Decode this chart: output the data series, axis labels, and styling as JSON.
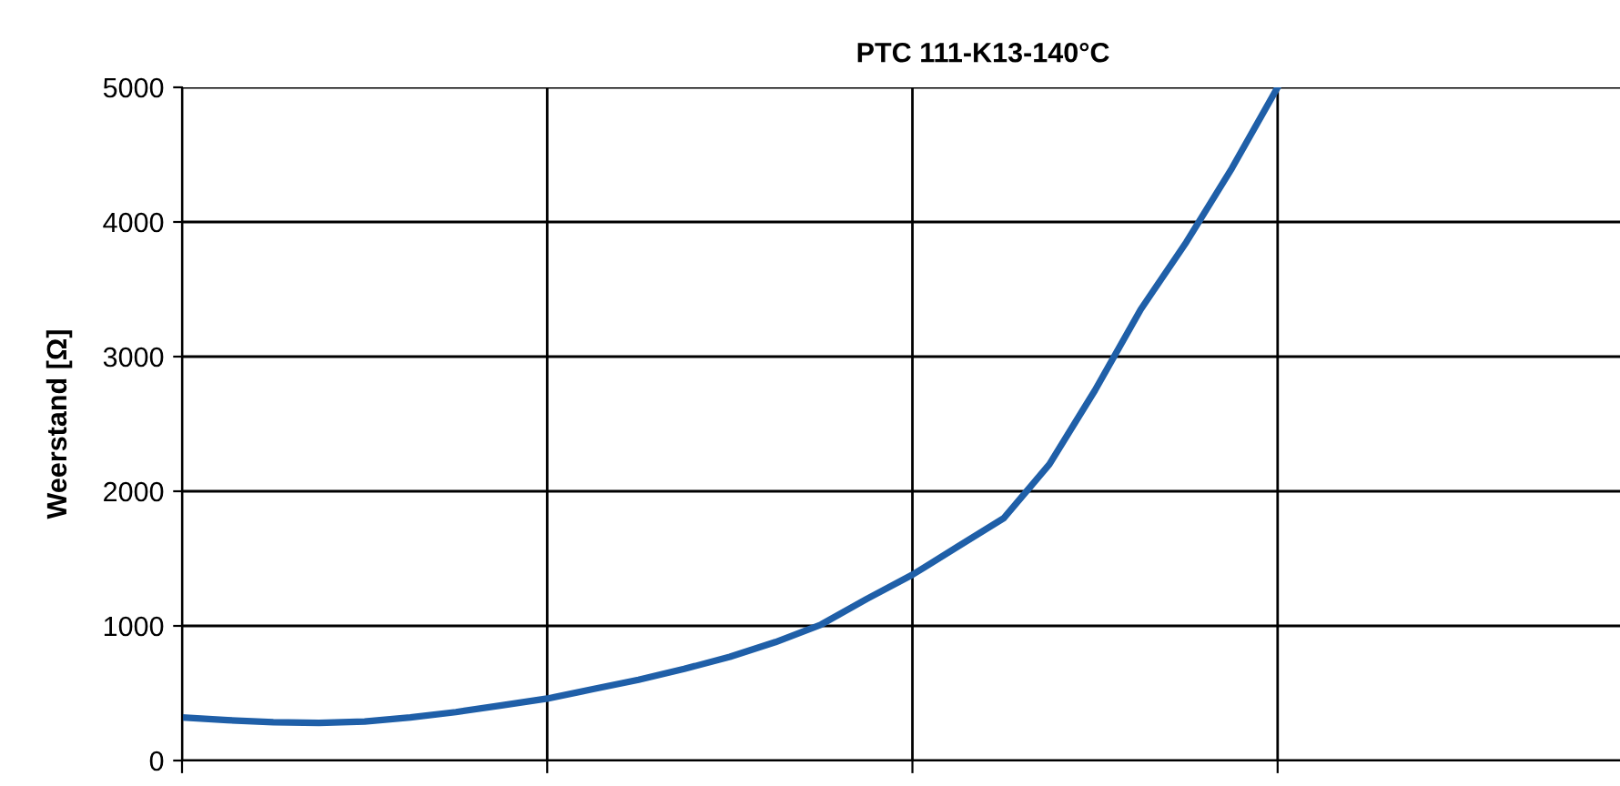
{
  "chart_data": {
    "type": "line",
    "title": "PTC 111-K13-140°C",
    "ylabel": "Weerstand [Ω]",
    "categories": [
      null,
      null,
      null,
      null,
      null,
      null,
      null,
      null,
      null,
      null,
      null,
      null,
      null,
      null,
      null,
      null,
      null,
      null,
      null,
      null,
      null,
      null,
      null,
      null,
      null,
      null,
      null,
      null,
      null,
      null,
      null,
      null
    ],
    "series": [
      {
        "color": "#1f5fa8",
        "values": [
          320,
          300,
          285,
          280,
          290,
          320,
          360,
          410,
          460,
          530,
          600,
          680,
          770,
          880,
          1010,
          1200,
          1380,
          1590,
          1800,
          2200,
          2750,
          3350,
          3850,
          4400,
          5000,
          null,
          null,
          null,
          null,
          null,
          null,
          null
        ]
      }
    ],
    "ylim": [
      0,
      5000
    ],
    "yticks": [
      0,
      1000,
      2000,
      3000,
      4000,
      5000
    ],
    "grid": true,
    "tick_labels": "y",
    "marker": "none",
    "line_style": "solid"
  }
}
